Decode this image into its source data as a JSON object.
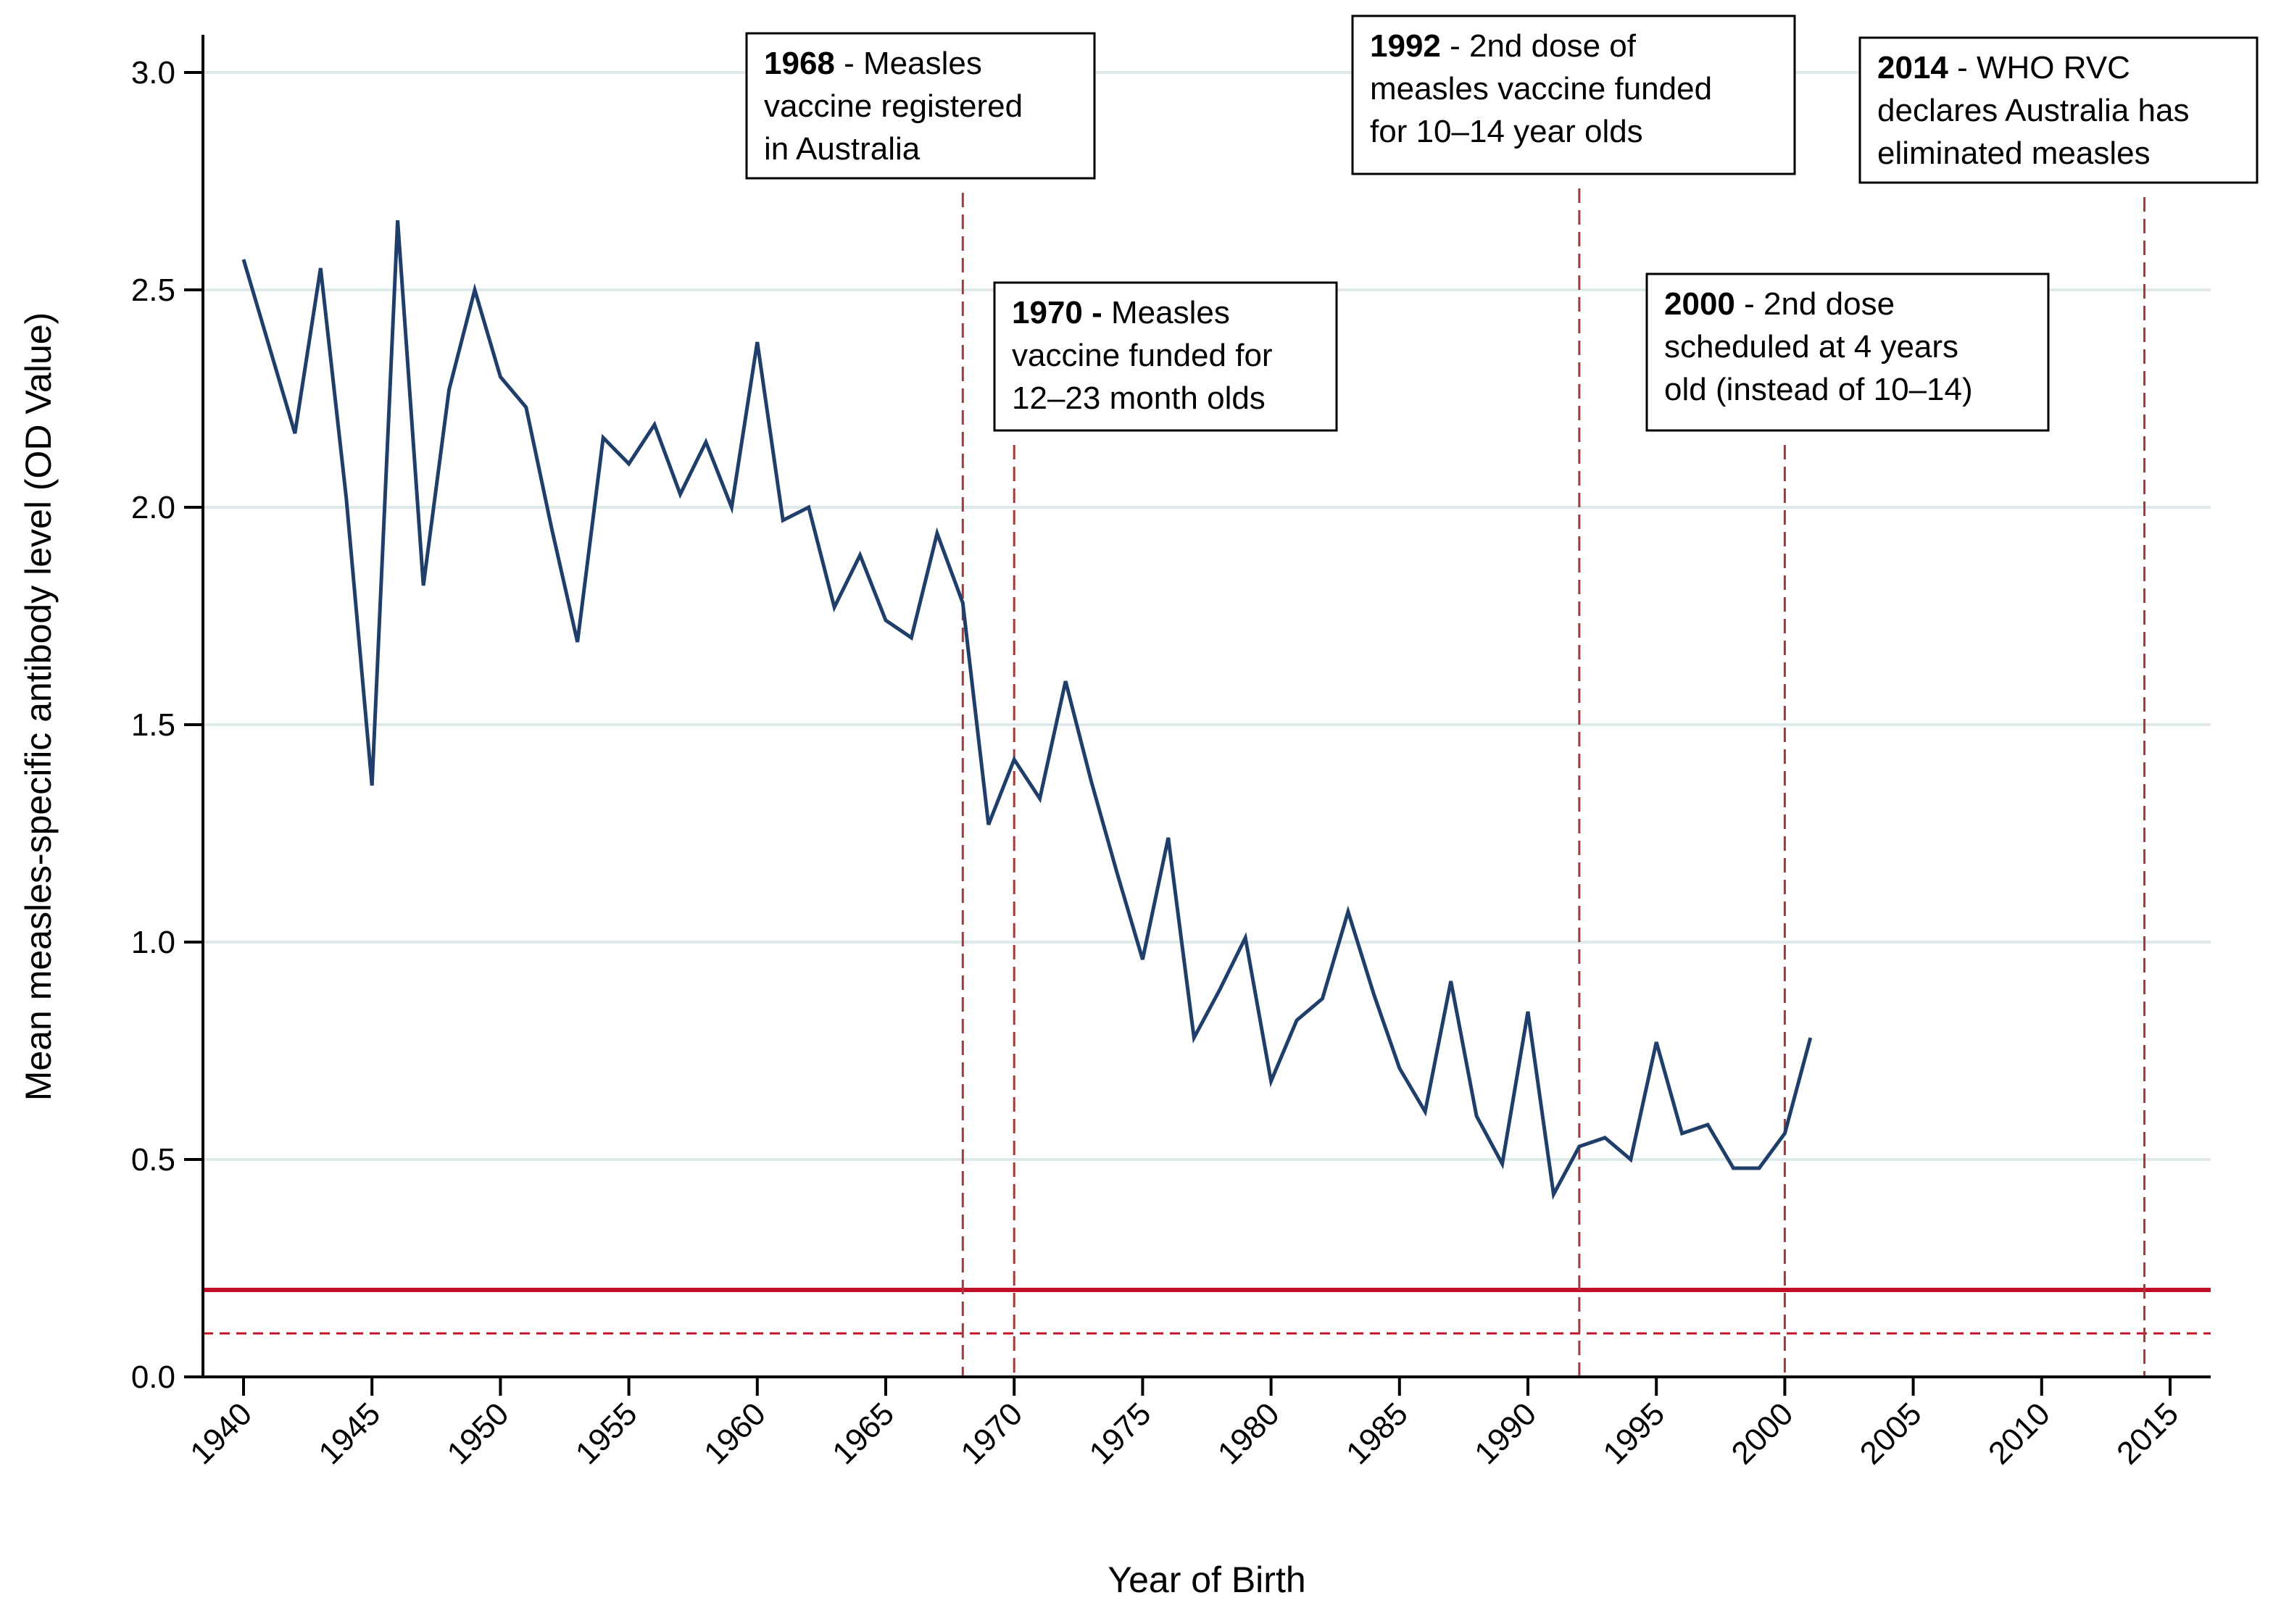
{
  "chart_data": {
    "type": "line",
    "xlabel": "Year of Birth",
    "ylabel": "Mean measles-specific antibody level (OD Value)",
    "xlim": [
      1938.5,
      2016.5
    ],
    "ylim": [
      0,
      3.05
    ],
    "x_ticks": [
      "1940",
      "1945",
      "1950",
      "1955",
      "1960",
      "1965",
      "1970",
      "1975",
      "1980",
      "1985",
      "1990",
      "1995",
      "2000",
      "2005",
      "2010",
      "2015"
    ],
    "y_ticks": [
      "0.0",
      "0.5",
      "1.0",
      "1.5",
      "2.0",
      "2.5",
      "3.0"
    ],
    "grid": true,
    "series_color": "#1f3f6a",
    "threshold_color": "#c0102a",
    "marker_color": "#a23a3a",
    "series": [
      {
        "x": [
          1940,
          1942,
          1943,
          1944,
          1945,
          1946,
          1947,
          1948,
          1949,
          1950,
          1951,
          1952,
          1953,
          1954,
          1955,
          1956,
          1957,
          1958,
          1959,
          1960,
          1961,
          1962,
          1963,
          1964,
          1965,
          1966,
          1967,
          1968,
          1969,
          1970,
          1971,
          1972,
          1973,
          1974,
          1975,
          1976,
          1977,
          1978,
          1979,
          1980,
          1981,
          1982,
          1983,
          1984,
          1985,
          1986,
          1987,
          1988,
          1989,
          1990,
          1991,
          1992,
          1993,
          1994,
          1995,
          1996,
          1997,
          1998,
          1999,
          2000,
          2001
        ],
        "y": [
          2.57,
          2.17,
          2.55,
          2.02,
          1.36,
          2.66,
          1.82,
          2.27,
          2.5,
          2.3,
          2.23,
          1.95,
          1.69,
          2.16,
          2.1,
          2.19,
          2.03,
          2.15,
          2.0,
          2.38,
          1.97,
          2.0,
          1.77,
          1.89,
          1.74,
          1.7,
          1.94,
          1.78,
          1.27,
          1.42,
          1.33,
          1.6,
          1.37,
          1.16,
          0.96,
          1.24,
          0.78,
          0.89,
          1.01,
          0.68,
          0.82,
          0.87,
          1.07,
          0.88,
          0.71,
          0.61,
          0.91,
          0.6,
          0.49,
          0.84,
          0.42,
          0.53,
          0.55,
          0.5,
          0.77,
          0.56,
          0.58,
          0.48,
          0.48,
          0.56,
          0.78
        ]
      }
    ],
    "reference_lines": [
      {
        "y": 0.2,
        "style": "solid"
      },
      {
        "y": 0.1,
        "style": "dashed"
      }
    ],
    "event_lines": [
      1968,
      1970,
      1992,
      2000,
      2014
    ],
    "annotations": [
      {
        "year": "1968",
        "bold": "1968",
        "rest": " - Measles",
        "lines": [
          "vaccine registered",
          "in Australia"
        ]
      },
      {
        "year": "1970",
        "bold": "1970 -",
        "rest": " Measles",
        "lines": [
          "vaccine funded for",
          "12–23 month olds"
        ]
      },
      {
        "year": "1992",
        "bold": "1992",
        "rest": " - 2nd dose of",
        "lines": [
          "measles vaccine funded",
          "for 10–14 year olds"
        ]
      },
      {
        "year": "2000",
        "bold": "2000",
        "rest": " - 2nd dose",
        "lines": [
          "scheduled at 4 years",
          "old (instead of 10–14)"
        ]
      },
      {
        "year": "2014",
        "bold": "2014",
        "rest": " - WHO RVC",
        "lines": [
          "declares Australia has",
          "eliminated measles"
        ]
      }
    ]
  }
}
